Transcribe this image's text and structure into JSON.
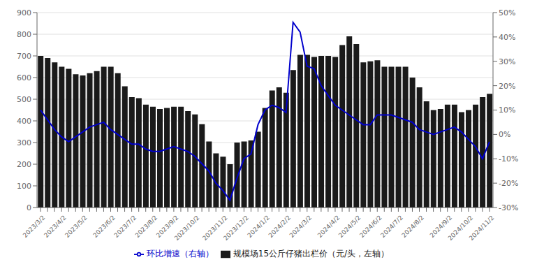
{
  "chart_data": {
    "type": "bar",
    "categories": [
      "2023/3/2",
      null,
      null,
      "2023/4/2",
      null,
      null,
      "2023/5/2",
      null,
      null,
      null,
      "2023/6/2",
      null,
      null,
      "2023/7/2",
      null,
      null,
      "2023/8/2",
      null,
      null,
      "2023/9/2",
      null,
      null,
      "2023/10/2",
      null,
      null,
      null,
      "2023/11/2",
      null,
      null,
      "2023/12/2",
      null,
      null,
      "2024/1/2",
      null,
      null,
      "2024/2/2",
      null,
      null,
      "2024/3/2",
      null,
      null,
      null,
      "2024/4/2",
      null,
      null,
      "2024/5/2",
      null,
      null,
      "2024/6/2",
      null,
      null,
      "2024/7/2",
      null,
      null,
      "2024/8/2",
      null,
      null,
      null,
      "2024/9/2",
      null,
      null,
      "2024/10/2",
      null,
      null,
      "2024/11/2"
    ],
    "series": [
      {
        "name": "规模场15公斤仔猪出栏价（元/头，左轴）",
        "type": "bar",
        "color": "#1a1a1a",
        "values": [
          700,
          690,
          670,
          650,
          640,
          615,
          610,
          620,
          630,
          650,
          650,
          620,
          560,
          510,
          505,
          475,
          465,
          455,
          460,
          465,
          465,
          445,
          430,
          385,
          305,
          250,
          235,
          200,
          300,
          305,
          310,
          350,
          460,
          540,
          555,
          530,
          635,
          705,
          705,
          695,
          700,
          700,
          695,
          750,
          790,
          755,
          670,
          675,
          680,
          650,
          650,
          650,
          650,
          600,
          555,
          490,
          450,
          455,
          475,
          475,
          440,
          450,
          475,
          510,
          525
        ]
      },
      {
        "name": "环比增速（右轴）",
        "type": "line",
        "axis": "y2",
        "color": "#0000cc",
        "values": [
          0.1,
          0.06,
          0.02,
          -0.01,
          -0.03,
          -0.01,
          0.01,
          0.03,
          0.04,
          0.05,
          0.02,
          0.0,
          -0.02,
          -0.04,
          -0.04,
          -0.06,
          -0.07,
          -0.07,
          -0.06,
          -0.05,
          -0.06,
          -0.07,
          -0.09,
          -0.12,
          -0.15,
          -0.2,
          -0.23,
          -0.27,
          -0.18,
          -0.1,
          -0.08,
          0.04,
          0.1,
          0.12,
          0.11,
          0.09,
          0.46,
          0.42,
          0.28,
          0.27,
          0.2,
          0.16,
          0.12,
          0.1,
          0.08,
          0.06,
          0.04,
          0.04,
          0.08,
          0.08,
          0.08,
          0.07,
          0.06,
          0.05,
          0.02,
          0.01,
          0.0,
          0.01,
          0.02,
          0.03,
          0.01,
          -0.02,
          -0.05,
          -0.1,
          -0.03
        ]
      }
    ],
    "ylim": [
      0,
      900
    ],
    "yticks": [
      0,
      100,
      200,
      300,
      400,
      500,
      600,
      700,
      800,
      900
    ],
    "y2lim": [
      -0.3,
      0.5
    ],
    "y2ticks": [
      {
        "value": -0.3,
        "label": "-30%"
      },
      {
        "value": -0.2,
        "label": "-20%"
      },
      {
        "value": -0.1,
        "label": "-10%"
      },
      {
        "value": 0.0,
        "label": "0%"
      },
      {
        "value": 0.1,
        "label": "10%"
      },
      {
        "value": 0.2,
        "label": "20%"
      },
      {
        "value": 0.3,
        "label": "30%"
      },
      {
        "value": 0.4,
        "label": "40%"
      },
      {
        "value": 0.5,
        "label": "50%"
      }
    ],
    "grid": true,
    "legend": "bottom"
  }
}
